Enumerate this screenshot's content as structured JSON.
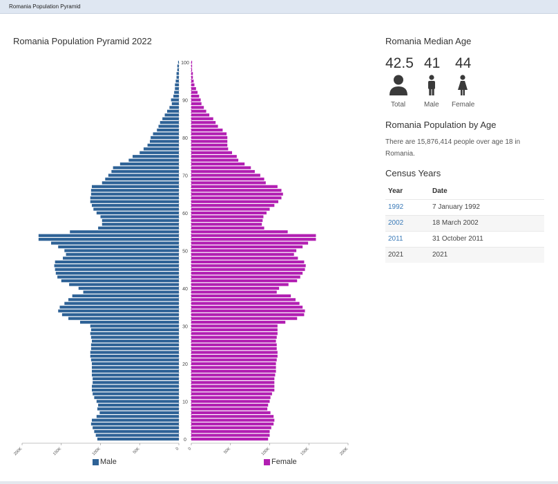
{
  "window": {
    "title": "Romania Population Pyramid"
  },
  "chart_data": {
    "type": "bar",
    "orientation": "horizontal",
    "title": "Romania Population Pyramid 2022",
    "age_ticks": [
      "0",
      "10",
      "20",
      "30",
      "40",
      "50",
      "60",
      "70",
      "80",
      "90",
      "100"
    ],
    "value_ticks_left": [
      "200K",
      "150K",
      "100K",
      "50K",
      "0"
    ],
    "value_ticks_right": [
      "0",
      "50K",
      "100K",
      "150K",
      "200K"
    ],
    "xlim": [
      0,
      200000
    ],
    "ages": [
      0,
      1,
      2,
      3,
      4,
      5,
      6,
      7,
      8,
      9,
      10,
      11,
      12,
      13,
      14,
      15,
      16,
      17,
      18,
      19,
      20,
      21,
      22,
      23,
      24,
      25,
      26,
      27,
      28,
      29,
      30,
      31,
      32,
      33,
      34,
      35,
      36,
      37,
      38,
      39,
      40,
      41,
      42,
      43,
      44,
      45,
      46,
      47,
      48,
      49,
      50,
      51,
      52,
      53,
      54,
      55,
      56,
      57,
      58,
      59,
      60,
      61,
      62,
      63,
      64,
      65,
      66,
      67,
      68,
      69,
      70,
      71,
      72,
      73,
      74,
      75,
      76,
      77,
      78,
      79,
      80,
      81,
      82,
      83,
      84,
      85,
      86,
      87,
      88,
      89,
      90,
      91,
      92,
      93,
      94,
      95,
      96,
      97,
      98,
      99,
      100
    ],
    "series": [
      {
        "name": "Male",
        "color": "#2e6296",
        "values": [
          104000,
          106000,
          108000,
          110000,
          112000,
          111000,
          105000,
          101000,
          104000,
          103000,
          105000,
          108000,
          110000,
          111000,
          111000,
          110000,
          110000,
          111000,
          111000,
          111000,
          111000,
          112000,
          113000,
          113000,
          112000,
          112000,
          111000,
          112000,
          113000,
          112000,
          113000,
          126000,
          141000,
          149000,
          154000,
          152000,
          146000,
          141000,
          136000,
          122000,
          128000,
          140000,
          150000,
          155000,
          157000,
          158000,
          159000,
          158000,
          148000,
          144000,
          146000,
          154000,
          163000,
          179000,
          179000,
          139000,
          103000,
          98000,
          98000,
          100000,
          105000,
          109000,
          111000,
          113000,
          113000,
          112000,
          112000,
          111000,
          98000,
          94000,
          90000,
          86000,
          84000,
          75000,
          64000,
          59000,
          50000,
          45000,
          40000,
          37000,
          36000,
          33000,
          28000,
          26000,
          24000,
          21000,
          18000,
          15000,
          12000,
          9000,
          10000,
          7000,
          6000,
          5000,
          5000,
          4000,
          3000,
          3000,
          2000,
          2000,
          1000
        ]
      },
      {
        "name": "Female",
        "color": "#b21fb2",
        "values": [
          98000,
          100000,
          100000,
          102000,
          105000,
          106000,
          105000,
          101000,
          97000,
          98000,
          100000,
          101000,
          103000,
          106000,
          106000,
          106000,
          106000,
          107000,
          108000,
          108000,
          108000,
          109000,
          110000,
          110000,
          109000,
          109000,
          108000,
          109000,
          110000,
          110000,
          110000,
          120000,
          135000,
          144000,
          145000,
          142000,
          138000,
          133000,
          127000,
          109000,
          112000,
          124000,
          135000,
          139000,
          142000,
          145000,
          146000,
          144000,
          136000,
          131000,
          134000,
          142000,
          149000,
          159000,
          159000,
          123000,
          93000,
          90000,
          91000,
          92000,
          96000,
          100000,
          106000,
          111000,
          115000,
          117000,
          115000,
          110000,
          95000,
          93000,
          88000,
          81000,
          76000,
          68000,
          60000,
          58000,
          52000,
          47000,
          46000,
          46000,
          46000,
          45000,
          40000,
          34000,
          31000,
          28000,
          23000,
          19000,
          16000,
          13000,
          12000,
          10000,
          8000,
          6000,
          4000,
          3000,
          2000,
          2000,
          1000,
          1000,
          1000
        ]
      }
    ],
    "legend": [
      "Male",
      "Female"
    ]
  },
  "median_age": {
    "heading": "Romania Median Age",
    "items": [
      {
        "value": "42.5",
        "label": "Total",
        "icon": "person-icon"
      },
      {
        "value": "41",
        "label": "Male",
        "icon": "male-icon"
      },
      {
        "value": "44",
        "label": "Female",
        "icon": "female-icon"
      }
    ]
  },
  "population": {
    "heading": "Romania Population by Age",
    "text": "There are 15,876,414 people over age 18 in Romania."
  },
  "census": {
    "heading": "Census Years",
    "columns": [
      "Year",
      "Date"
    ],
    "rows": [
      {
        "year": "1992",
        "date": "7 January 1992",
        "link": true
      },
      {
        "year": "2002",
        "date": "18 March 2002",
        "link": true
      },
      {
        "year": "2011",
        "date": "31 October 2011",
        "link": true
      },
      {
        "year": "2021",
        "date": "2021",
        "link": false
      }
    ]
  }
}
